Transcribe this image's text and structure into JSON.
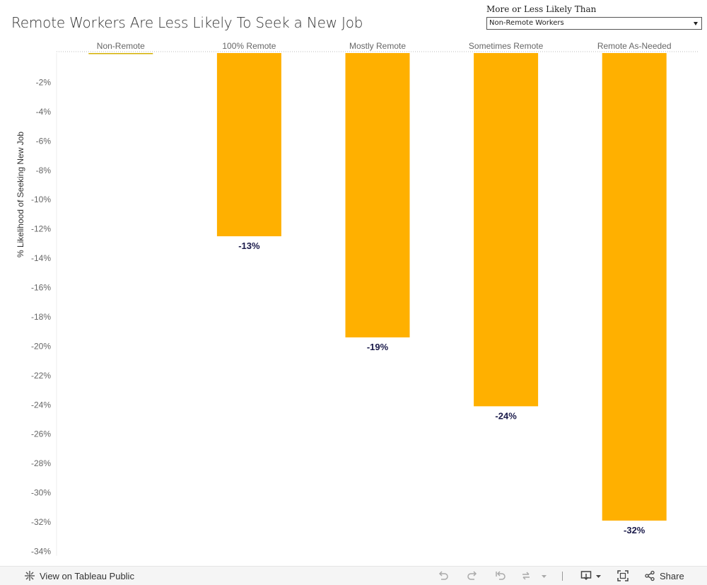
{
  "title": "Remote Workers Are Less Likely To Seek a New Job",
  "filter": {
    "label": "More or Less Likely Than",
    "value": "Non-Remote Workers"
  },
  "toolbar": {
    "view_label": "View on Tableau Public",
    "share_label": "Share"
  },
  "colors": {
    "bar": "#FFB000",
    "baseline_bar": "#D4B000",
    "label": "#1a1a4a",
    "axis_text": "#666666"
  },
  "chart_data": {
    "type": "bar",
    "categories": [
      "Non-Remote",
      "100% Remote",
      "Mostly Remote",
      "Sometimes Remote",
      "Remote As-Needed"
    ],
    "values": [
      0,
      -12.5,
      -19.4,
      -24.1,
      -31.9
    ],
    "data_labels": [
      "",
      "-13%",
      "-19%",
      "-24%",
      "-32%"
    ],
    "ylabel": "% Likelihood of Seeking New Job",
    "yticks": [
      "-2%",
      "-4%",
      "-6%",
      "-8%",
      "-10%",
      "-12%",
      "-14%",
      "-16%",
      "-18%",
      "-20%",
      "-22%",
      "-24%",
      "-26%",
      "-28%",
      "-30%",
      "-32%",
      "-34%"
    ],
    "ytick_values": [
      -2,
      -4,
      -6,
      -8,
      -10,
      -12,
      -14,
      -16,
      -18,
      -20,
      -22,
      -24,
      -26,
      -28,
      -30,
      -32,
      -34
    ],
    "ylim": [
      -34.3,
      0
    ],
    "xaxis_position": "top",
    "grid": false
  }
}
